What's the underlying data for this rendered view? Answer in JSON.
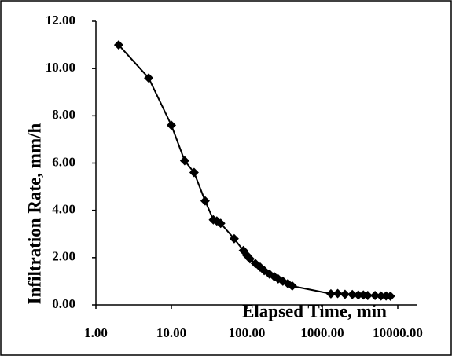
{
  "chart_data": {
    "type": "line",
    "xlabel": "Elapsed Time, min",
    "ylabel": "Infiltration Rate, mm/h",
    "xscale": "log",
    "x": [
      2,
      5,
      10,
      15,
      20,
      28,
      36,
      40,
      45,
      68,
      90,
      100,
      110,
      130,
      150,
      170,
      200,
      230,
      260,
      300,
      350,
      400,
      1300,
      1600,
      2000,
      2500,
      3000,
      3500,
      4000,
      5000,
      6000,
      7000,
      8000
    ],
    "series": [
      {
        "name": "Infiltration Rate",
        "color": "#000000",
        "values": [
          11.0,
          9.6,
          7.6,
          6.1,
          5.6,
          4.4,
          3.6,
          3.55,
          3.45,
          2.8,
          2.3,
          2.1,
          1.95,
          1.75,
          1.6,
          1.45,
          1.3,
          1.2,
          1.1,
          1.0,
          0.9,
          0.8,
          0.47,
          0.48,
          0.45,
          0.44,
          0.42,
          0.42,
          0.4,
          0.4,
          0.38,
          0.38,
          0.37
        ]
      }
    ],
    "xlim": [
      1,
      18000
    ],
    "ylim": [
      0,
      12
    ],
    "xticks": [
      {
        "value": 1,
        "label": "1.00"
      },
      {
        "value": 10,
        "label": "10.00"
      },
      {
        "value": 100,
        "label": "100.00"
      },
      {
        "value": 1000,
        "label": "1000.00"
      },
      {
        "value": 10000,
        "label": "10000.00"
      }
    ],
    "yticks": [
      {
        "value": 0,
        "label": "0.00"
      },
      {
        "value": 2,
        "label": "2.00"
      },
      {
        "value": 4,
        "label": "4.00"
      },
      {
        "value": 6,
        "label": "6.00"
      },
      {
        "value": 8,
        "label": "8.00"
      },
      {
        "value": 10,
        "label": "10.00"
      },
      {
        "value": 12,
        "label": "12.00"
      }
    ],
    "grid": false
  }
}
